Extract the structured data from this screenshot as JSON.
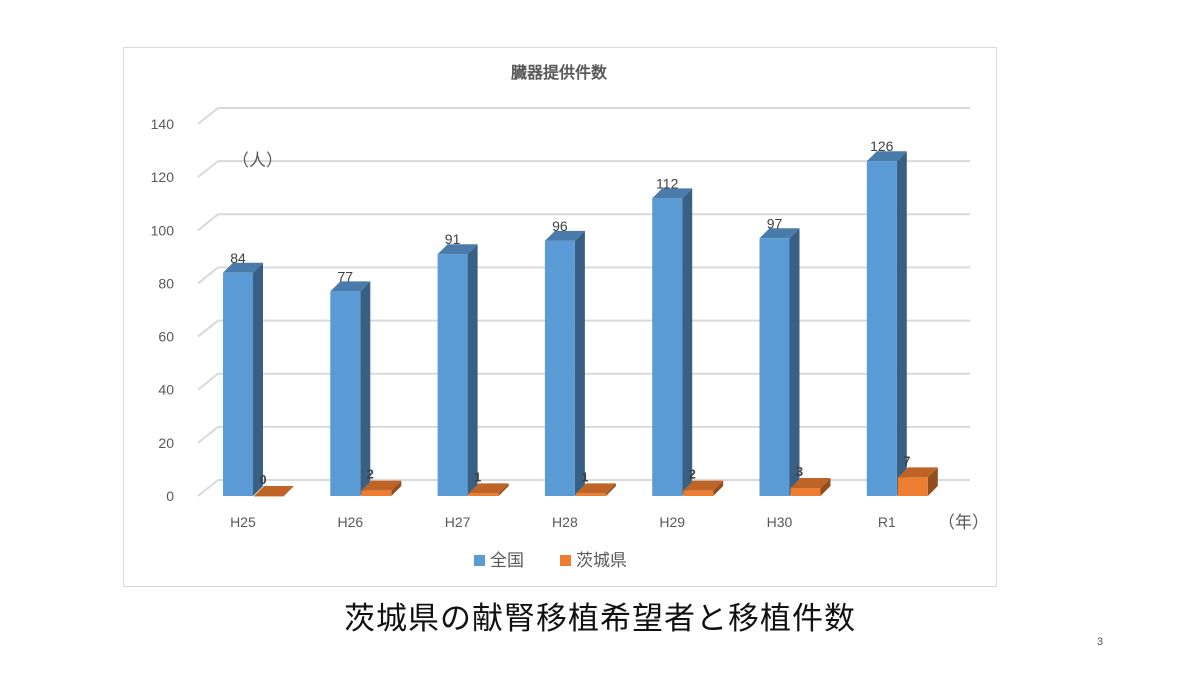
{
  "chart_data": {
    "type": "bar",
    "title": "臓器提供件数",
    "ylabel": "（人）",
    "xlabel": "（年）",
    "categories": [
      "H25",
      "H26",
      "H27",
      "H28",
      "H29",
      "H30",
      "R1"
    ],
    "series": [
      {
        "name": "全国",
        "values": [
          84,
          77,
          91,
          96,
          112,
          97,
          126
        ],
        "color": "#5b9bd5"
      },
      {
        "name": "茨城県",
        "values": [
          0,
          2,
          1,
          1,
          2,
          3,
          7
        ],
        "color": "#ed7d31"
      }
    ],
    "ylim": [
      0,
      140
    ],
    "yticks": [
      0,
      20,
      40,
      60,
      80,
      100,
      120,
      140
    ],
    "grid": true,
    "legend": "bottom",
    "style": "3d-column"
  },
  "caption": "茨城県の献腎移植希望者と移植件数",
  "page_number": "3"
}
